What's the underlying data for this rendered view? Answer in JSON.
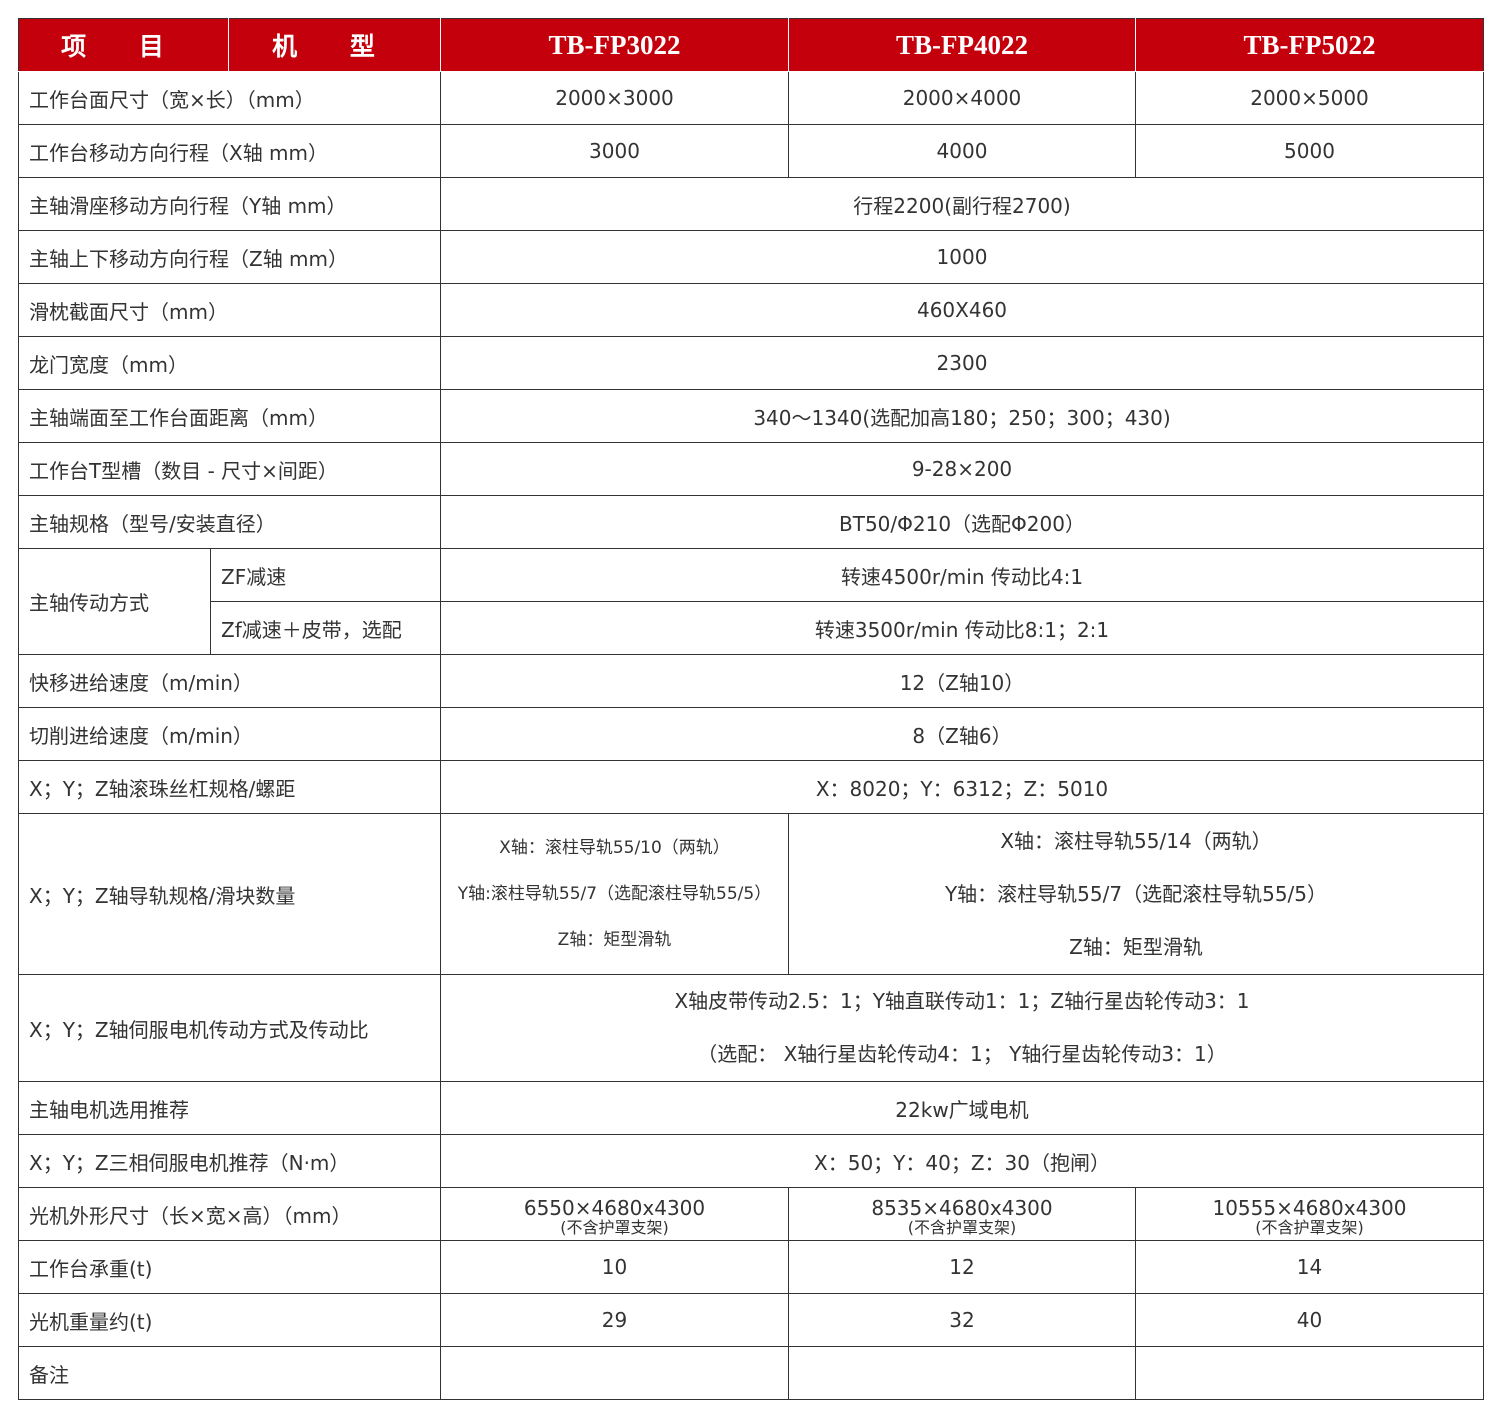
{
  "colors": {
    "header_bg": "#C4000C",
    "header_text": "#FFFFFF",
    "text": "#333333",
    "border": "#333333"
  },
  "header": {
    "item": "项 目",
    "model": "机 型",
    "models": [
      "TB-FP3022",
      "TB-FP4022",
      "TB-FP5022"
    ]
  },
  "rows": [
    {
      "label": "工作台面尺寸（宽×长）（mm）",
      "cells": [
        {
          "lines": [
            "2000×3000"
          ]
        },
        {
          "lines": [
            "2000×4000"
          ]
        },
        {
          "lines": [
            "2000×5000"
          ]
        }
      ]
    },
    {
      "label": "工作台移动方向行程（X轴 mm）",
      "cells": [
        {
          "lines": [
            "3000"
          ]
        },
        {
          "lines": [
            "4000"
          ]
        },
        {
          "lines": [
            "5000"
          ]
        }
      ]
    },
    {
      "label": "主轴滑座移动方向行程（Y轴 mm）",
      "cells": [
        {
          "lines": [
            "行程2200(副行程2700)"
          ]
        }
      ]
    },
    {
      "label": "主轴上下移动方向行程（Z轴 mm）",
      "cells": [
        {
          "lines": [
            "1000"
          ]
        }
      ]
    },
    {
      "label": "滑枕截面尺寸（mm）",
      "cells": [
        {
          "lines": [
            "460X460"
          ]
        }
      ]
    },
    {
      "label": "龙门宽度（mm）",
      "cells": [
        {
          "lines": [
            "2300"
          ]
        }
      ]
    },
    {
      "label": "主轴端面至工作台面距离（mm）",
      "cells": [
        {
          "lines": [
            "340～1340(选配加高180；250；300；430)"
          ]
        }
      ]
    },
    {
      "label": "工作台T型槽（数目 - 尺寸×间距）",
      "cells": [
        {
          "lines": [
            "9-28×200"
          ]
        }
      ]
    },
    {
      "label": "主轴规格（型号/安装直径）",
      "cells": [
        {
          "lines": [
            "BT50/Φ210（选配Φ200）"
          ]
        }
      ]
    },
    {
      "label": "主轴传动方式",
      "sub": [
        {
          "label": "ZF减速",
          "value": "转速4500r/min 传动比4:1"
        },
        {
          "label": "Zf减速＋皮带，选配",
          "value": "转速3500r/min 传动比8:1；2:1"
        }
      ]
    },
    {
      "label": "快移进给速度（m/min）",
      "cells": [
        {
          "lines": [
            "12（Z轴10）"
          ]
        }
      ]
    },
    {
      "label": "切削进给速度（m/min）",
      "cells": [
        {
          "lines": [
            "8（Z轴6）"
          ]
        }
      ]
    },
    {
      "label": "X；Y；Z轴滚珠丝杠规格/螺距",
      "cells": [
        {
          "lines": [
            "X：8020；Y：6312；Z：5010"
          ]
        }
      ]
    },
    {
      "label": "X；Y；Z轴导轨规格/滑块数量",
      "tall": 160,
      "cells": [
        {
          "small": true,
          "lines": [
            "X轴：滚柱导轨55/10（两轨）",
            "Y轴:滚柱导轨55/7（选配滚柱导轨55/5）",
            "Z轴：矩型滑轨"
          ]
        },
        {
          "span": 2,
          "lines": [
            "X轴：滚柱导轨55/14（两轨）",
            "Y轴：滚柱导轨55/7（选配滚柱导轨55/5）",
            "Z轴：矩型滑轨"
          ]
        }
      ]
    },
    {
      "label": "X；Y；Z轴伺服电机传动方式及传动比",
      "tall": 106,
      "cells": [
        {
          "lines": [
            "X轴皮带传动2.5：1；Y轴直联传动1：1；Z轴行星齿轮传动3：1",
            "（选配： X轴行星齿轮传动4：1； Y轴行星齿轮传动3：1）"
          ]
        }
      ]
    },
    {
      "label": "主轴电机选用推荐",
      "cells": [
        {
          "lines": [
            "22kw广域电机"
          ]
        }
      ]
    },
    {
      "label": "X；Y；Z三相伺服电机推荐（N·m）",
      "cells": [
        {
          "lines": [
            "X：50；Y：40；Z：30（抱闸）"
          ]
        }
      ]
    },
    {
      "label": "光机外形尺寸（长×宽×高）（mm）",
      "cells": [
        {
          "lines": [
            "6550×4680x4300"
          ],
          "note": "(不含护罩支架)"
        },
        {
          "lines": [
            "8535×4680x4300"
          ],
          "note": "(不含护罩支架)"
        },
        {
          "lines": [
            "10555×4680x4300"
          ],
          "note": "(不含护罩支架)"
        }
      ]
    },
    {
      "label": "工作台承重(t)",
      "cells": [
        {
          "lines": [
            "10"
          ]
        },
        {
          "lines": [
            "12"
          ]
        },
        {
          "lines": [
            "14"
          ]
        }
      ]
    },
    {
      "label": "光机重量约(t)",
      "cells": [
        {
          "lines": [
            "29"
          ]
        },
        {
          "lines": [
            "32"
          ]
        },
        {
          "lines": [
            "40"
          ]
        }
      ]
    },
    {
      "label": "备注",
      "cells": [
        {
          "lines": [
            ""
          ]
        },
        {
          "lines": [
            ""
          ]
        },
        {
          "lines": [
            ""
          ]
        }
      ]
    }
  ]
}
